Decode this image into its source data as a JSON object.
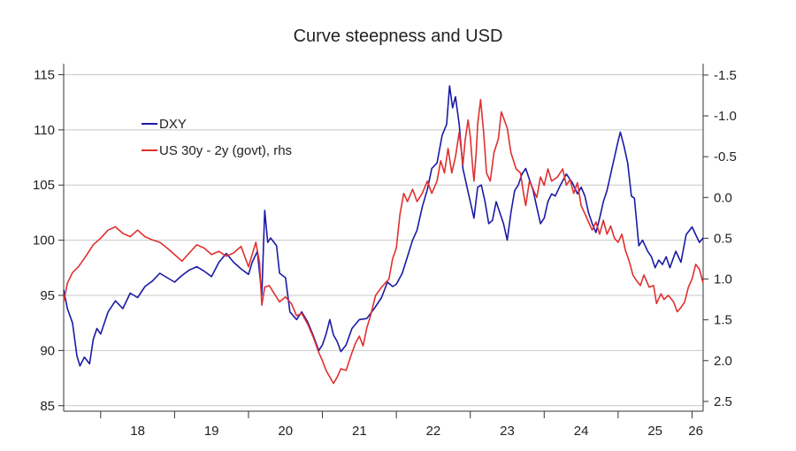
{
  "chart_data": {
    "type": "line",
    "title": "Curve steepness and USD",
    "x_labels": [
      "18",
      "19",
      "20",
      "21",
      "22",
      "23",
      "24",
      "25",
      "26"
    ],
    "x_range": [
      2017.5,
      2026.15
    ],
    "left_axis": {
      "ticks": [
        "85",
        "90",
        "95",
        "100",
        "105",
        "110",
        "115"
      ],
      "ylim": [
        84.5,
        116
      ]
    },
    "right_axis": {
      "inverted": true,
      "ticks": [
        "-1.5",
        "-1.0",
        "-0.5",
        "0.0",
        "0.5",
        "1.0",
        "1.5",
        "2.0",
        "2.5"
      ],
      "ylim": [
        -1.64,
        2.62
      ]
    },
    "grid": "horizontal",
    "legend_position": "top-left",
    "series": [
      {
        "name": "DXY",
        "axis": "left",
        "color": "#1a1aa6",
        "points": [
          [
            2017.5,
            95.5
          ],
          [
            2017.55,
            93.8
          ],
          [
            2017.62,
            92.5
          ],
          [
            2017.68,
            89.5
          ],
          [
            2017.72,
            88.6
          ],
          [
            2017.78,
            89.4
          ],
          [
            2017.85,
            88.8
          ],
          [
            2017.9,
            91.0
          ],
          [
            2017.95,
            92.0
          ],
          [
            2018.0,
            91.5
          ],
          [
            2018.1,
            93.5
          ],
          [
            2018.2,
            94.5
          ],
          [
            2018.3,
            93.8
          ],
          [
            2018.4,
            95.2
          ],
          [
            2018.5,
            94.8
          ],
          [
            2018.6,
            95.8
          ],
          [
            2018.7,
            96.3
          ],
          [
            2018.8,
            97.0
          ],
          [
            2018.9,
            96.6
          ],
          [
            2019.0,
            96.2
          ],
          [
            2019.1,
            96.8
          ],
          [
            2019.2,
            97.3
          ],
          [
            2019.3,
            97.6
          ],
          [
            2019.4,
            97.2
          ],
          [
            2019.5,
            96.7
          ],
          [
            2019.6,
            98.0
          ],
          [
            2019.7,
            98.8
          ],
          [
            2019.8,
            98.0
          ],
          [
            2019.9,
            97.4
          ],
          [
            2020.0,
            96.9
          ],
          [
            2020.05,
            98.0
          ],
          [
            2020.12,
            99.0
          ],
          [
            2020.18,
            95.0
          ],
          [
            2020.22,
            102.7
          ],
          [
            2020.26,
            99.8
          ],
          [
            2020.3,
            100.2
          ],
          [
            2020.38,
            99.5
          ],
          [
            2020.42,
            97.0
          ],
          [
            2020.5,
            96.6
          ],
          [
            2020.56,
            93.5
          ],
          [
            2020.65,
            92.8
          ],
          [
            2020.72,
            93.5
          ],
          [
            2020.8,
            92.6
          ],
          [
            2020.88,
            91.3
          ],
          [
            2020.95,
            90.0
          ],
          [
            2021.0,
            90.5
          ],
          [
            2021.05,
            91.5
          ],
          [
            2021.1,
            92.8
          ],
          [
            2021.15,
            91.4
          ],
          [
            2021.2,
            90.8
          ],
          [
            2021.25,
            89.9
          ],
          [
            2021.32,
            90.5
          ],
          [
            2021.4,
            92.0
          ],
          [
            2021.5,
            92.8
          ],
          [
            2021.6,
            92.9
          ],
          [
            2021.7,
            93.8
          ],
          [
            2021.8,
            94.8
          ],
          [
            2021.88,
            96.2
          ],
          [
            2021.95,
            95.8
          ],
          [
            2022.0,
            96.0
          ],
          [
            2022.08,
            97.0
          ],
          [
            2022.15,
            98.5
          ],
          [
            2022.22,
            100.0
          ],
          [
            2022.28,
            100.9
          ],
          [
            2022.35,
            103.0
          ],
          [
            2022.42,
            104.6
          ],
          [
            2022.48,
            106.5
          ],
          [
            2022.55,
            107.0
          ],
          [
            2022.62,
            109.5
          ],
          [
            2022.68,
            110.5
          ],
          [
            2022.72,
            114.0
          ],
          [
            2022.76,
            112.0
          ],
          [
            2022.8,
            113.0
          ],
          [
            2022.85,
            110.5
          ],
          [
            2022.9,
            106.5
          ],
          [
            2022.95,
            105.0
          ],
          [
            2023.0,
            103.5
          ],
          [
            2023.05,
            102.0
          ],
          [
            2023.1,
            104.8
          ],
          [
            2023.15,
            105.0
          ],
          [
            2023.2,
            103.5
          ],
          [
            2023.25,
            101.5
          ],
          [
            2023.3,
            101.8
          ],
          [
            2023.35,
            103.5
          ],
          [
            2023.4,
            102.5
          ],
          [
            2023.45,
            101.5
          ],
          [
            2023.5,
            100.0
          ],
          [
            2023.55,
            102.5
          ],
          [
            2023.6,
            104.5
          ],
          [
            2023.65,
            105.0
          ],
          [
            2023.7,
            106.0
          ],
          [
            2023.75,
            106.5
          ],
          [
            2023.8,
            105.5
          ],
          [
            2023.85,
            104.5
          ],
          [
            2023.9,
            103.0
          ],
          [
            2023.95,
            101.5
          ],
          [
            2024.0,
            102.0
          ],
          [
            2024.05,
            103.5
          ],
          [
            2024.1,
            104.2
          ],
          [
            2024.15,
            104.0
          ],
          [
            2024.22,
            105.0
          ],
          [
            2024.3,
            106.0
          ],
          [
            2024.38,
            105.2
          ],
          [
            2024.45,
            104.2
          ],
          [
            2024.5,
            104.8
          ],
          [
            2024.55,
            104.0
          ],
          [
            2024.6,
            102.5
          ],
          [
            2024.65,
            101.5
          ],
          [
            2024.7,
            100.7
          ],
          [
            2024.75,
            102.0
          ],
          [
            2024.8,
            103.5
          ],
          [
            2024.85,
            104.5
          ],
          [
            2024.9,
            106.0
          ],
          [
            2024.95,
            107.5
          ],
          [
            2025.0,
            109.0
          ],
          [
            2025.03,
            109.8
          ],
          [
            2025.08,
            108.5
          ],
          [
            2025.13,
            107.0
          ],
          [
            2025.18,
            104.0
          ],
          [
            2025.22,
            103.8
          ],
          [
            2025.28,
            99.5
          ],
          [
            2025.33,
            100.0
          ],
          [
            2025.4,
            99.0
          ],
          [
            2025.45,
            98.5
          ],
          [
            2025.5,
            97.5
          ],
          [
            2025.55,
            98.2
          ],
          [
            2025.6,
            97.8
          ],
          [
            2025.65,
            98.5
          ],
          [
            2025.7,
            97.5
          ],
          [
            2025.78,
            99.0
          ],
          [
            2025.85,
            98.0
          ],
          [
            2025.92,
            100.5
          ],
          [
            2026.0,
            101.2
          ],
          [
            2026.05,
            100.5
          ],
          [
            2026.1,
            99.8
          ],
          [
            2026.15,
            100.2
          ]
        ]
      },
      {
        "name": "US 30y - 2y (govt), rhs",
        "axis": "right",
        "color": "#e03030",
        "points": [
          [
            2017.5,
            1.28
          ],
          [
            2017.55,
            1.05
          ],
          [
            2017.62,
            0.92
          ],
          [
            2017.7,
            0.85
          ],
          [
            2017.8,
            0.72
          ],
          [
            2017.9,
            0.58
          ],
          [
            2018.0,
            0.5
          ],
          [
            2018.1,
            0.4
          ],
          [
            2018.2,
            0.36
          ],
          [
            2018.3,
            0.44
          ],
          [
            2018.4,
            0.48
          ],
          [
            2018.5,
            0.4
          ],
          [
            2018.6,
            0.48
          ],
          [
            2018.7,
            0.52
          ],
          [
            2018.8,
            0.55
          ],
          [
            2018.9,
            0.62
          ],
          [
            2019.0,
            0.7
          ],
          [
            2019.1,
            0.78
          ],
          [
            2019.2,
            0.68
          ],
          [
            2019.3,
            0.58
          ],
          [
            2019.4,
            0.62
          ],
          [
            2019.5,
            0.7
          ],
          [
            2019.6,
            0.66
          ],
          [
            2019.7,
            0.72
          ],
          [
            2019.8,
            0.68
          ],
          [
            2019.9,
            0.6
          ],
          [
            2020.0,
            0.85
          ],
          [
            2020.05,
            0.7
          ],
          [
            2020.1,
            0.55
          ],
          [
            2020.15,
            0.8
          ],
          [
            2020.18,
            1.32
          ],
          [
            2020.22,
            1.1
          ],
          [
            2020.28,
            1.08
          ],
          [
            2020.35,
            1.18
          ],
          [
            2020.42,
            1.28
          ],
          [
            2020.5,
            1.22
          ],
          [
            2020.58,
            1.3
          ],
          [
            2020.65,
            1.45
          ],
          [
            2020.72,
            1.42
          ],
          [
            2020.8,
            1.55
          ],
          [
            2020.88,
            1.72
          ],
          [
            2020.95,
            1.9
          ],
          [
            2021.0,
            2.0
          ],
          [
            2021.05,
            2.12
          ],
          [
            2021.1,
            2.2
          ],
          [
            2021.15,
            2.28
          ],
          [
            2021.2,
            2.2
          ],
          [
            2021.25,
            2.1
          ],
          [
            2021.32,
            2.12
          ],
          [
            2021.4,
            1.9
          ],
          [
            2021.45,
            1.78
          ],
          [
            2021.5,
            1.7
          ],
          [
            2021.55,
            1.82
          ],
          [
            2021.6,
            1.6
          ],
          [
            2021.65,
            1.45
          ],
          [
            2021.72,
            1.2
          ],
          [
            2021.8,
            1.1
          ],
          [
            2021.85,
            1.05
          ],
          [
            2021.9,
            1.0
          ],
          [
            2021.95,
            0.75
          ],
          [
            2022.0,
            0.62
          ],
          [
            2022.05,
            0.2
          ],
          [
            2022.1,
            -0.05
          ],
          [
            2022.15,
            0.05
          ],
          [
            2022.22,
            -0.1
          ],
          [
            2022.28,
            0.05
          ],
          [
            2022.35,
            -0.05
          ],
          [
            2022.42,
            -0.2
          ],
          [
            2022.48,
            -0.05
          ],
          [
            2022.55,
            -0.2
          ],
          [
            2022.6,
            -0.45
          ],
          [
            2022.65,
            -0.3
          ],
          [
            2022.7,
            -0.6
          ],
          [
            2022.75,
            -0.3
          ],
          [
            2022.8,
            -0.5
          ],
          [
            2022.85,
            -0.8
          ],
          [
            2022.9,
            -0.4
          ],
          [
            2022.93,
            -0.7
          ],
          [
            2022.97,
            -0.95
          ],
          [
            2023.0,
            -0.75
          ],
          [
            2023.03,
            -0.4
          ],
          [
            2023.05,
            -0.2
          ],
          [
            2023.08,
            -0.55
          ],
          [
            2023.1,
            -0.9
          ],
          [
            2023.14,
            -1.2
          ],
          [
            2023.18,
            -0.8
          ],
          [
            2023.22,
            -0.3
          ],
          [
            2023.27,
            -0.2
          ],
          [
            2023.32,
            -0.55
          ],
          [
            2023.38,
            -0.72
          ],
          [
            2023.42,
            -1.05
          ],
          [
            2023.46,
            -0.95
          ],
          [
            2023.5,
            -0.85
          ],
          [
            2023.55,
            -0.55
          ],
          [
            2023.62,
            -0.35
          ],
          [
            2023.68,
            -0.3
          ],
          [
            2023.72,
            -0.05
          ],
          [
            2023.75,
            0.1
          ],
          [
            2023.8,
            -0.2
          ],
          [
            2023.85,
            -0.1
          ],
          [
            2023.9,
            0.0
          ],
          [
            2023.95,
            -0.25
          ],
          [
            2024.0,
            -0.15
          ],
          [
            2024.05,
            -0.35
          ],
          [
            2024.1,
            -0.2
          ],
          [
            2024.18,
            -0.25
          ],
          [
            2024.25,
            -0.35
          ],
          [
            2024.3,
            -0.15
          ],
          [
            2024.35,
            -0.22
          ],
          [
            2024.4,
            -0.05
          ],
          [
            2024.45,
            -0.18
          ],
          [
            2024.5,
            0.1
          ],
          [
            2024.55,
            0.2
          ],
          [
            2024.6,
            0.3
          ],
          [
            2024.65,
            0.4
          ],
          [
            2024.7,
            0.3
          ],
          [
            2024.75,
            0.45
          ],
          [
            2024.8,
            0.28
          ],
          [
            2024.85,
            0.45
          ],
          [
            2024.9,
            0.35
          ],
          [
            2024.95,
            0.5
          ],
          [
            2025.0,
            0.55
          ],
          [
            2025.05,
            0.45
          ],
          [
            2025.1,
            0.65
          ],
          [
            2025.15,
            0.78
          ],
          [
            2025.2,
            0.95
          ],
          [
            2025.25,
            1.02
          ],
          [
            2025.3,
            1.08
          ],
          [
            2025.35,
            0.95
          ],
          [
            2025.42,
            1.1
          ],
          [
            2025.48,
            1.08
          ],
          [
            2025.52,
            1.3
          ],
          [
            2025.58,
            1.18
          ],
          [
            2025.62,
            1.25
          ],
          [
            2025.68,
            1.2
          ],
          [
            2025.75,
            1.28
          ],
          [
            2025.8,
            1.4
          ],
          [
            2025.85,
            1.35
          ],
          [
            2025.9,
            1.28
          ],
          [
            2025.95,
            1.1
          ],
          [
            2026.0,
            1.0
          ],
          [
            2026.05,
            0.82
          ],
          [
            2026.1,
            0.88
          ],
          [
            2026.15,
            1.05
          ]
        ]
      }
    ]
  }
}
